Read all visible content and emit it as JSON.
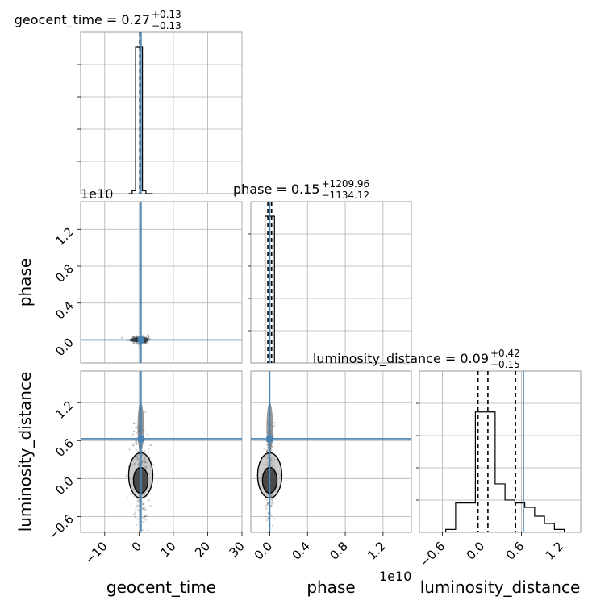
{
  "chart_data": {
    "type": "corner",
    "truths": {
      "geocent_time": 0.6,
      "phase": 0.0,
      "luminosity_distance": 0.63
    },
    "colors": {
      "truth": "#4682b4",
      "hist": "#000000",
      "grid": "#b0b0b0",
      "axis": "#808080"
    },
    "grid": true,
    "panels": {
      "geocent_time": {
        "title_main": "geocent_time = 0.27",
        "title_sup": "+0.13",
        "title_sub": "−0.13",
        "xlabel": "geocent_time",
        "xlim": [
          -17,
          30
        ],
        "xticks": [
          "−10",
          "0",
          "10",
          "20",
          "30"
        ],
        "xtick_values": [
          -10,
          0,
          10,
          20,
          30
        ],
        "hist": {
          "edges": [
            -3,
            -2,
            -1,
            0,
            1,
            2,
            3,
            4
          ],
          "counts": [
            0,
            0.02,
            1.0,
            1.0,
            0.02,
            0,
            0
          ]
        },
        "quantiles": [
          0.27
        ]
      },
      "phase": {
        "title_main": "phase = 0.15",
        "title_sup": "+1209.96",
        "title_sub": "−1134.12",
        "xlabel": "phase",
        "offset": "1e10",
        "ylabel": "phase",
        "yoffset": "1e10",
        "xlim": [
          -0.2,
          1.5
        ],
        "xticks": [
          "0.0",
          "0.4",
          "0.8",
          "1.2"
        ],
        "xtick_values": [
          0.0,
          0.4,
          0.8,
          1.2
        ],
        "ylim": [
          -0.25,
          1.5
        ],
        "yticks": [
          "0.0",
          "0.4",
          "0.8",
          "1.2"
        ],
        "ytick_values": [
          0.0,
          0.4,
          0.8,
          1.2
        ],
        "hist": {
          "edges": [
            -0.05,
            0.0,
            0.05
          ],
          "counts": [
            1.0,
            1.0
          ]
        },
        "quantiles": [
          -0.02,
          0.0,
          0.02
        ]
      },
      "luminosity_distance": {
        "title_main": "luminosity_distance = 0.09",
        "title_sup": "+0.42",
        "title_sub": "−0.15",
        "xlabel": "luminosity_distance",
        "ylabel": "luminosity_distance",
        "xlim": [
          -0.95,
          1.5
        ],
        "xticks": [
          "−0.6",
          "0.0",
          "0.6",
          "1.2"
        ],
        "xtick_values": [
          -0.6,
          0.0,
          0.6,
          1.2
        ],
        "ylim": [
          -0.85,
          1.7
        ],
        "yticks": [
          "−0.6",
          "0.0",
          "0.6",
          "1.2"
        ],
        "ytick_values": [
          -0.6,
          0.0,
          0.6,
          1.2
        ],
        "hist": {
          "edges": [
            -0.55,
            -0.4,
            -0.25,
            -0.1,
            0.05,
            0.2,
            0.35,
            0.5,
            0.65,
            0.8,
            0.95,
            1.1,
            1.25
          ],
          "counts": [
            0.02,
            0.2,
            0.2,
            0.82,
            0.82,
            0.33,
            0.22,
            0.2,
            0.17,
            0.11,
            0.06,
            0.02
          ]
        },
        "quantiles": [
          -0.06,
          0.09,
          0.51
        ]
      }
    }
  }
}
